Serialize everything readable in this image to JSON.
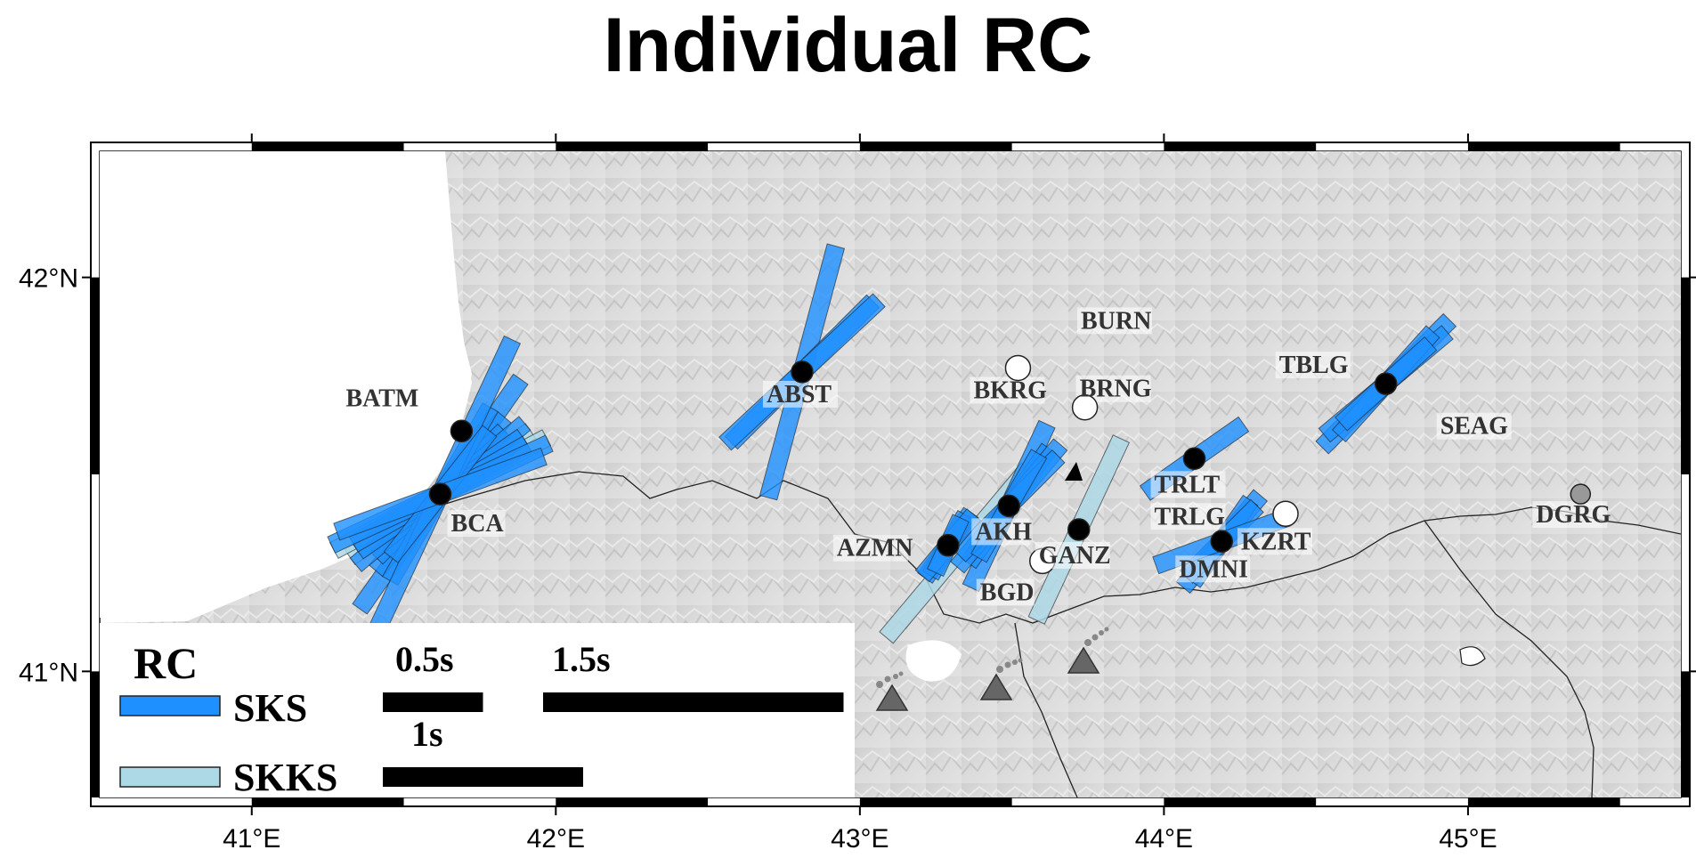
{
  "title": "Individual RC",
  "map": {
    "lon_range": [
      40.5,
      45.7
    ],
    "lat_range": [
      40.68,
      42.32
    ],
    "x_ticks": [
      {
        "lon": 41,
        "label": "41°E"
      },
      {
        "lon": 42,
        "label": "42°E"
      },
      {
        "lon": 43,
        "label": "43°E"
      },
      {
        "lon": 44,
        "label": "44°E"
      },
      {
        "lon": 45,
        "label": "45°E"
      }
    ],
    "y_ticks": [
      {
        "lat": 41,
        "label": "41°N"
      },
      {
        "lat": 42,
        "label": "42°N"
      }
    ]
  },
  "stations": [
    {
      "name": "BATM",
      "lon": 41.69,
      "lat": 41.61,
      "marker": "black"
    },
    {
      "name": "BCA",
      "lon": 41.62,
      "lat": 41.45,
      "marker": "black"
    },
    {
      "name": "ABST",
      "lon": 42.81,
      "lat": 41.76,
      "marker": "black"
    },
    {
      "name": "BKRG",
      "lon": 43.52,
      "lat": 41.77,
      "marker": "white"
    },
    {
      "name": "BURN",
      "lon": 43.75,
      "lat": 41.82,
      "marker": "none"
    },
    {
      "name": "BRNG",
      "lon": 43.74,
      "lat": 41.67,
      "marker": "white"
    },
    {
      "name": "AKH",
      "lon": 43.49,
      "lat": 41.42,
      "marker": "black"
    },
    {
      "name": "AZMN",
      "lon": 43.29,
      "lat": 41.32,
      "marker": "black"
    },
    {
      "name": "BGD",
      "lon": 43.6,
      "lat": 41.28,
      "marker": "white"
    },
    {
      "name": "GANZ",
      "lon": 43.72,
      "lat": 41.36,
      "marker": "black"
    },
    {
      "name": "TRLT",
      "lon": 44.1,
      "lat": 41.54,
      "marker": "black"
    },
    {
      "name": "TRLG",
      "lon": 44.1,
      "lat": 41.4,
      "marker": "none"
    },
    {
      "name": "KZRT",
      "lon": 44.4,
      "lat": 41.4,
      "marker": "white"
    },
    {
      "name": "DMNI",
      "lon": 44.19,
      "lat": 41.33,
      "marker": "black"
    },
    {
      "name": "TBLG",
      "lon": 44.73,
      "lat": 41.73,
      "marker": "black"
    },
    {
      "name": "SEAG",
      "lon": 44.85,
      "lat": 41.67,
      "marker": "none"
    },
    {
      "name": "DGRG",
      "lon": 45.37,
      "lat": 41.45,
      "marker": "gray"
    }
  ],
  "splits": [
    {
      "phase": "SKS",
      "lon": 41.62,
      "lat": 41.45,
      "az": 35,
      "dt": 1.4
    },
    {
      "phase": "SKS",
      "lon": 41.62,
      "lat": 41.45,
      "az": 40,
      "dt": 1.0
    },
    {
      "phase": "SKS",
      "lon": 41.62,
      "lat": 41.45,
      "az": 45,
      "dt": 0.9
    },
    {
      "phase": "SKS",
      "lon": 41.62,
      "lat": 41.45,
      "az": 50,
      "dt": 1.1
    },
    {
      "phase": "SKS",
      "lon": 41.62,
      "lat": 41.45,
      "az": 55,
      "dt": 1.0
    },
    {
      "phase": "SKS",
      "lon": 41.62,
      "lat": 41.45,
      "az": 60,
      "dt": 1.0
    },
    {
      "phase": "SKS",
      "lon": 41.62,
      "lat": 41.45,
      "az": 65,
      "dt": 1.2
    },
    {
      "phase": "SKS",
      "lon": 41.62,
      "lat": 41.45,
      "az": 30,
      "dt": 1.0
    },
    {
      "phase": "SKS",
      "lon": 41.62,
      "lat": 41.45,
      "az": 25,
      "dt": 1.7
    },
    {
      "phase": "SKS",
      "lon": 41.62,
      "lat": 41.45,
      "az": 38,
      "dt": 0.8
    },
    {
      "phase": "SKS",
      "lon": 41.62,
      "lat": 41.45,
      "az": 70,
      "dt": 1.1
    },
    {
      "phase": "SKKS",
      "lon": 41.62,
      "lat": 41.45,
      "az": 55,
      "dt": 1.1
    },
    {
      "phase": "SKKS",
      "lon": 41.62,
      "lat": 41.45,
      "az": 62,
      "dt": 1.2
    },
    {
      "phase": "SKKS",
      "lon": 41.62,
      "lat": 41.45,
      "az": 42,
      "dt": 0.9
    },
    {
      "phase": "SKS",
      "lon": 42.81,
      "lat": 41.76,
      "az": 15,
      "dt": 1.3
    },
    {
      "phase": "SKS",
      "lon": 42.81,
      "lat": 41.76,
      "az": 45,
      "dt": 1.0
    },
    {
      "phase": "SKS",
      "lon": 42.81,
      "lat": 41.76,
      "az": 47,
      "dt": 1.05
    },
    {
      "phase": "SKS",
      "lon": 43.49,
      "lat": 41.42,
      "az": 25,
      "dt": 0.9
    },
    {
      "phase": "SKS",
      "lon": 43.49,
      "lat": 41.42,
      "az": 35,
      "dt": 0.7
    },
    {
      "phase": "SKS",
      "lon": 43.49,
      "lat": 41.42,
      "az": 40,
      "dt": 0.8
    },
    {
      "phase": "SKS",
      "lon": 43.49,
      "lat": 41.42,
      "az": 45,
      "dt": 0.7
    },
    {
      "phase": "SKS",
      "lon": 43.49,
      "lat": 41.42,
      "az": 30,
      "dt": 0.6
    },
    {
      "phase": "SKS",
      "lon": 43.29,
      "lat": 41.32,
      "az": 35,
      "dt": 0.4
    },
    {
      "phase": "SKS",
      "lon": 43.29,
      "lat": 41.32,
      "az": 30,
      "dt": 0.35
    },
    {
      "phase": "SKS",
      "lon": 43.29,
      "lat": 41.32,
      "az": 40,
      "dt": 0.4
    },
    {
      "phase": "SKS",
      "lon": 43.29,
      "lat": 41.32,
      "az": 25,
      "dt": 0.3
    },
    {
      "phase": "SKKS",
      "lon": 43.32,
      "lat": 41.3,
      "az": 40,
      "dt": 1.1
    },
    {
      "phase": "SKKS",
      "lon": 43.72,
      "lat": 41.36,
      "az": 25,
      "dt": 1.0
    },
    {
      "phase": "SKS",
      "lon": 44.1,
      "lat": 41.54,
      "az": 55,
      "dt": 0.6
    },
    {
      "phase": "SKS",
      "lon": 44.19,
      "lat": 41.33,
      "az": 40,
      "dt": 0.6
    },
    {
      "phase": "SKS",
      "lon": 44.19,
      "lat": 41.33,
      "az": 35,
      "dt": 0.5
    },
    {
      "phase": "SKS",
      "lon": 44.19,
      "lat": 41.33,
      "az": 45,
      "dt": 0.5
    },
    {
      "phase": "SKS",
      "lon": 44.19,
      "lat": 41.33,
      "az": 70,
      "dt": 0.7
    },
    {
      "phase": "SKS",
      "lon": 44.73,
      "lat": 41.73,
      "az": 45,
      "dt": 0.9
    },
    {
      "phase": "SKS",
      "lon": 44.73,
      "lat": 41.73,
      "az": 50,
      "dt": 0.8
    },
    {
      "phase": "SKS",
      "lon": 44.73,
      "lat": 41.73,
      "az": 42,
      "dt": 0.7
    },
    {
      "phase": "SKS",
      "lon": 44.73,
      "lat": 41.73,
      "az": 48,
      "dt": 0.6
    }
  ],
  "legend": {
    "title": "RC",
    "sks_label": "SKS",
    "skks_label": "SKKS",
    "scale_bars": [
      {
        "dt": 0.5,
        "label": "0.5s"
      },
      {
        "dt": 1.5,
        "label": "1.5s"
      },
      {
        "dt": 1.0,
        "label": "1s"
      }
    ]
  },
  "colors": {
    "sks": "#1e90ff",
    "skks": "#add8e6",
    "relief": "#d4d4d4",
    "sea": "#ffffff"
  }
}
